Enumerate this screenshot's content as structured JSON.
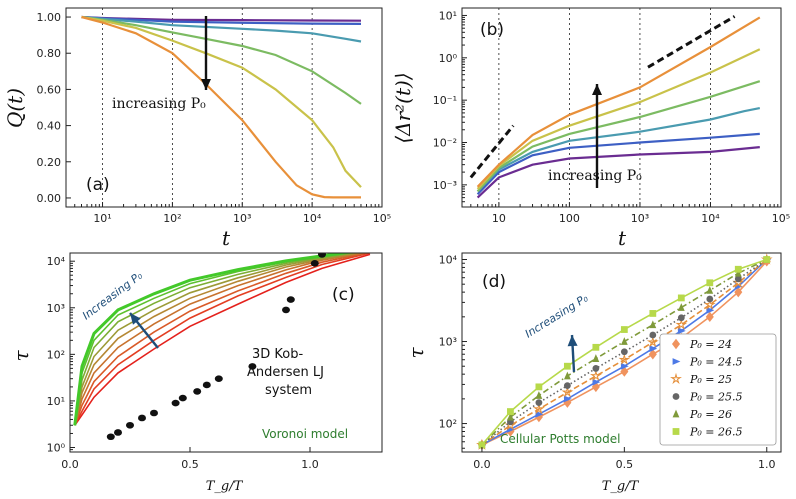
{
  "chart_data": [
    {
      "id": "a",
      "type": "line",
      "panel_label": "(a)",
      "xlabel": "t",
      "ylabel": "Q(t)",
      "xscale": "log",
      "xlim": [
        3,
        100000
      ],
      "ylim": [
        -0.05,
        1.05
      ],
      "xticks": [
        {
          "v": 10,
          "label": "10¹"
        },
        {
          "v": 100,
          "label": "10²"
        },
        {
          "v": 1000,
          "label": "10³"
        },
        {
          "v": 10000,
          "label": "10⁴"
        },
        {
          "v": 100000,
          "label": "10⁵"
        }
      ],
      "yticks": [
        {
          "v": 0.0,
          "label": "0.00"
        },
        {
          "v": 0.2,
          "label": "0.20"
        },
        {
          "v": 0.4,
          "label": "0.40"
        },
        {
          "v": 0.6,
          "label": "0.60"
        },
        {
          "v": 0.8,
          "label": "0.80"
        },
        {
          "v": 1.0,
          "label": "1.00"
        }
      ],
      "vlines": [
        10,
        100,
        1000,
        10000
      ],
      "annotation": "increasing P₀",
      "series": [
        {
          "color": "#6a2c91",
          "x": [
            5,
            10,
            30,
            100,
            1000,
            10000,
            50000
          ],
          "y": [
            1.0,
            0.995,
            0.99,
            0.985,
            0.983,
            0.981,
            0.98
          ]
        },
        {
          "color": "#3d5fc4",
          "x": [
            5,
            10,
            30,
            100,
            1000,
            10000,
            50000
          ],
          "y": [
            1.0,
            0.993,
            0.985,
            0.975,
            0.968,
            0.964,
            0.962
          ]
        },
        {
          "color": "#4a9bb0",
          "x": [
            5,
            10,
            30,
            100,
            1000,
            3000,
            10000,
            30000,
            50000
          ],
          "y": [
            1.0,
            0.99,
            0.975,
            0.955,
            0.935,
            0.925,
            0.91,
            0.88,
            0.865
          ]
        },
        {
          "color": "#7cbb62",
          "x": [
            5,
            10,
            30,
            100,
            300,
            1000,
            3000,
            10000,
            30000,
            50000
          ],
          "y": [
            1.0,
            0.985,
            0.955,
            0.915,
            0.88,
            0.84,
            0.79,
            0.7,
            0.58,
            0.52
          ]
        },
        {
          "color": "#c9c24a",
          "x": [
            5,
            10,
            30,
            100,
            300,
            1000,
            3000,
            10000,
            20000,
            30000,
            50000
          ],
          "y": [
            1.0,
            0.98,
            0.94,
            0.87,
            0.8,
            0.72,
            0.6,
            0.43,
            0.28,
            0.15,
            0.06
          ]
        },
        {
          "color": "#e8903a",
          "x": [
            5,
            10,
            30,
            100,
            300,
            1000,
            3000,
            6000,
            10000,
            15000,
            20000,
            50000
          ],
          "y": [
            1.0,
            0.97,
            0.91,
            0.8,
            0.63,
            0.43,
            0.2,
            0.07,
            0.02,
            0.005,
            0.003,
            0.003
          ]
        }
      ]
    },
    {
      "id": "b",
      "type": "line",
      "panel_label": "(b)",
      "xlabel": "t",
      "ylabel": "⟨Δr²(t)⟩",
      "xscale": "log",
      "yscale": "log",
      "xlim": [
        3,
        100000
      ],
      "ylim": [
        0.0003,
        15
      ],
      "xticks": [
        {
          "v": 10,
          "label": "10"
        },
        {
          "v": 100,
          "label": "100"
        },
        {
          "v": 1000,
          "label": "10³"
        },
        {
          "v": 10000,
          "label": "10⁴"
        },
        {
          "v": 100000,
          "label": "10⁵"
        }
      ],
      "yticks": [
        {
          "v": 0.001,
          "label": "10⁻³"
        },
        {
          "v": 0.01,
          "label": "10⁻²"
        },
        {
          "v": 0.1,
          "label": "10⁻¹"
        },
        {
          "v": 1,
          "label": "10⁰"
        },
        {
          "v": 10,
          "label": "10¹"
        }
      ],
      "vlines": [
        10,
        100,
        1000,
        10000
      ],
      "annotation": "increasing P₀",
      "guide_lines": [
        {
          "x": [
            4,
            16
          ],
          "y": [
            0.0015,
            0.025
          ]
        },
        {
          "x": [
            1300,
            22000
          ],
          "y": [
            0.6,
            9.5
          ]
        }
      ],
      "series": [
        {
          "color": "#6a2c91",
          "x": [
            5,
            10,
            30,
            100,
            1000,
            10000,
            50000
          ],
          "y": [
            0.0005,
            0.0015,
            0.003,
            0.0042,
            0.0052,
            0.006,
            0.0078
          ]
        },
        {
          "color": "#3d5fc4",
          "x": [
            5,
            10,
            30,
            100,
            1000,
            10000,
            50000
          ],
          "y": [
            0.0006,
            0.002,
            0.005,
            0.0075,
            0.01,
            0.013,
            0.016
          ]
        },
        {
          "color": "#4a9bb0",
          "x": [
            5,
            10,
            30,
            100,
            1000,
            10000,
            30000,
            50000
          ],
          "y": [
            0.0007,
            0.0023,
            0.006,
            0.011,
            0.018,
            0.035,
            0.055,
            0.065
          ]
        },
        {
          "color": "#7cbb62",
          "x": [
            5,
            10,
            30,
            100,
            1000,
            10000,
            50000
          ],
          "y": [
            0.0007,
            0.0025,
            0.008,
            0.016,
            0.04,
            0.12,
            0.28
          ]
        },
        {
          "color": "#c9c24a",
          "x": [
            5,
            10,
            30,
            100,
            1000,
            10000,
            50000
          ],
          "y": [
            0.0008,
            0.0028,
            0.011,
            0.025,
            0.09,
            0.45,
            1.6
          ]
        },
        {
          "color": "#e8903a",
          "x": [
            5,
            10,
            30,
            100,
            1000,
            10000,
            50000
          ],
          "y": [
            0.0009,
            0.003,
            0.015,
            0.045,
            0.2,
            1.8,
            9.0
          ]
        }
      ]
    },
    {
      "id": "c",
      "type": "line",
      "panel_label": "(c)",
      "xlabel": "T_g/T",
      "ylabel": "τ",
      "yscale": "log",
      "xlim": [
        0,
        1.3
      ],
      "ylim": [
        0.8,
        15000
      ],
      "xticks": [
        {
          "v": 0,
          "label": "0.0"
        },
        {
          "v": 0.5,
          "label": "0.5"
        },
        {
          "v": 1.0,
          "label": "1.0"
        }
      ],
      "yticks": [
        {
          "v": 1,
          "label": "10⁰"
        },
        {
          "v": 10,
          "label": "10¹"
        },
        {
          "v": 100,
          "label": "10²"
        },
        {
          "v": 1000,
          "label": "10³"
        },
        {
          "v": 10000,
          "label": "10⁴"
        }
      ],
      "annotation": "Increasing P₀",
      "kob_label_line1": "3D Kob-",
      "kob_label_line2": "Andersen LJ",
      "kob_label_line3": "system",
      "model_label": "Voronoi model",
      "kob_points": {
        "x": [
          0.17,
          0.2,
          0.25,
          0.3,
          0.35,
          0.44,
          0.47,
          0.53,
          0.57,
          0.62,
          0.76,
          0.9,
          0.92,
          1.02,
          1.05,
          1.13
        ],
        "y": [
          1.7,
          2.1,
          3.0,
          4.3,
          5.5,
          9.0,
          11.5,
          16,
          22,
          30,
          55,
          900,
          1500,
          9000,
          14000,
          20000
        ]
      },
      "series": [
        {
          "color": "#e4211c",
          "x": [
            0.02,
            0.05,
            0.1,
            0.2,
            0.35,
            0.5,
            0.7,
            0.9,
            1.05,
            1.25
          ],
          "y": [
            3,
            5,
            12,
            40,
            130,
            400,
            1200,
            3500,
            7000,
            14000
          ]
        },
        {
          "color": "#e33e22",
          "x": [
            0.02,
            0.05,
            0.1,
            0.2,
            0.35,
            0.5,
            0.7,
            0.9,
            1.05,
            1.25
          ],
          "y": [
            3,
            6,
            18,
            60,
            200,
            600,
            1800,
            4500,
            8500,
            15000
          ]
        },
        {
          "color": "#d95a28",
          "x": [
            0.02,
            0.05,
            0.1,
            0.2,
            0.35,
            0.5,
            0.7,
            0.9,
            1.05,
            1.25
          ],
          "y": [
            3,
            8,
            26,
            90,
            300,
            850,
            2300,
            5500,
            9500,
            15500
          ]
        },
        {
          "color": "#c8722e",
          "x": [
            0.02,
            0.05,
            0.1,
            0.2,
            0.35,
            0.5,
            0.7,
            0.9,
            1.05,
            1.25
          ],
          "y": [
            3,
            11,
            40,
            140,
            450,
            1200,
            3000,
            6500,
            10500,
            16000
          ]
        },
        {
          "color": "#b58834",
          "x": [
            0.02,
            0.05,
            0.1,
            0.2,
            0.35,
            0.5,
            0.7,
            0.9,
            1.05,
            1.25
          ],
          "y": [
            3,
            15,
            60,
            220,
            650,
            1600,
            3700,
            7500,
            11000,
            16500
          ]
        },
        {
          "color": "#9c9a36",
          "x": [
            0.02,
            0.05,
            0.1,
            0.2,
            0.35,
            0.5,
            0.7,
            0.9,
            1.05,
            1.25
          ],
          "y": [
            3,
            20,
            90,
            330,
            900,
            2100,
            4400,
            8300,
            11500,
            17000
          ]
        },
        {
          "color": "#7dae34",
          "x": [
            0.02,
            0.05,
            0.1,
            0.2,
            0.35,
            0.5,
            0.7,
            0.9,
            1.05,
            1.25
          ],
          "y": [
            3,
            28,
            140,
            500,
            1250,
            2700,
            5200,
            9000,
            12000,
            17500
          ]
        },
        {
          "color": "#5dc12e",
          "x": [
            0.02,
            0.05,
            0.1,
            0.2,
            0.35,
            0.5,
            0.7,
            0.9,
            1.05,
            1.25
          ],
          "y": [
            3,
            40,
            200,
            700,
            1600,
            3300,
            6000,
            9700,
            12500,
            18000
          ]
        },
        {
          "color": "#43c92a",
          "x": [
            0.02,
            0.05,
            0.1,
            0.2,
            0.35,
            0.5,
            0.7,
            0.9,
            1.05,
            1.25
          ],
          "y": [
            3,
            55,
            280,
            900,
            2000,
            3900,
            6600,
            10200,
            13000,
            18000
          ]
        }
      ]
    },
    {
      "id": "d",
      "type": "scatter",
      "panel_label": "(d)",
      "xlabel": "T_g/T",
      "ylabel": "τ",
      "yscale": "log",
      "xlim": [
        -0.07,
        1.05
      ],
      "ylim": [
        45,
        12000
      ],
      "xticks": [
        {
          "v": 0,
          "label": "0.0"
        },
        {
          "v": 0.5,
          "label": "0.5"
        },
        {
          "v": 1.0,
          "label": "1.0"
        }
      ],
      "yticks": [
        {
          "v": 100,
          "label": "10²"
        },
        {
          "v": 1000,
          "label": "10³"
        },
        {
          "v": 10000,
          "label": "10⁴"
        }
      ],
      "annotation": "Increasing P₀",
      "model_label": "Cellular Potts model",
      "legend_position": "lower-right",
      "series": [
        {
          "name": "P₀ = 24",
          "marker": "diamond",
          "color": "#f0935e",
          "line_style": "solid",
          "x": [
            0.0,
            0.1,
            0.2,
            0.3,
            0.4,
            0.5,
            0.6,
            0.7,
            0.8,
            0.9,
            1.0
          ],
          "y": [
            55,
            80,
            120,
            180,
            280,
            430,
            700,
            1100,
            2000,
            4000,
            9500
          ]
        },
        {
          "name": "P₀ = 24.5",
          "marker": "triangle-right",
          "color": "#4d79e6",
          "line_style": "solid",
          "x": [
            0.0,
            0.1,
            0.2,
            0.3,
            0.4,
            0.5,
            0.6,
            0.7,
            0.8,
            0.9,
            1.0
          ],
          "y": [
            55,
            85,
            130,
            200,
            320,
            500,
            820,
            1350,
            2400,
            4700,
            10000
          ]
        },
        {
          "name": "P₀ = 25",
          "marker": "star",
          "color": "#e58f3a",
          "line_style": "dashed",
          "x": [
            0.0,
            0.1,
            0.2,
            0.3,
            0.4,
            0.5,
            0.6,
            0.7,
            0.8,
            0.9,
            1.0
          ],
          "y": [
            55,
            95,
            150,
            240,
            380,
            600,
            980,
            1600,
            2800,
            5200,
            10000
          ]
        },
        {
          "name": "P₀ = 25.5",
          "marker": "circle",
          "color": "#666666",
          "line_style": "dotted",
          "x": [
            0.0,
            0.1,
            0.2,
            0.3,
            0.4,
            0.5,
            0.6,
            0.7,
            0.8,
            0.9,
            1.0
          ],
          "y": [
            55,
            105,
            180,
            290,
            470,
            750,
            1200,
            1950,
            3300,
            5800,
            10000
          ]
        },
        {
          "name": "P₀ = 26",
          "marker": "triangle-up",
          "color": "#7f9a3a",
          "line_style": "dashdot",
          "x": [
            0.0,
            0.1,
            0.2,
            0.3,
            0.4,
            0.5,
            0.6,
            0.7,
            0.8,
            0.9,
            1.0
          ],
          "y": [
            55,
            120,
            220,
            380,
            620,
            1000,
            1600,
            2600,
            4200,
            6800,
            10000
          ]
        },
        {
          "name": "P₀ = 26.5",
          "marker": "square",
          "color": "#b7d94a",
          "line_style": "solid",
          "x": [
            0.0,
            0.1,
            0.2,
            0.3,
            0.4,
            0.5,
            0.6,
            0.7,
            0.8,
            0.9,
            1.0
          ],
          "y": [
            55,
            140,
            280,
            500,
            850,
            1400,
            2200,
            3400,
            5200,
            7600,
            10000
          ]
        }
      ]
    }
  ]
}
